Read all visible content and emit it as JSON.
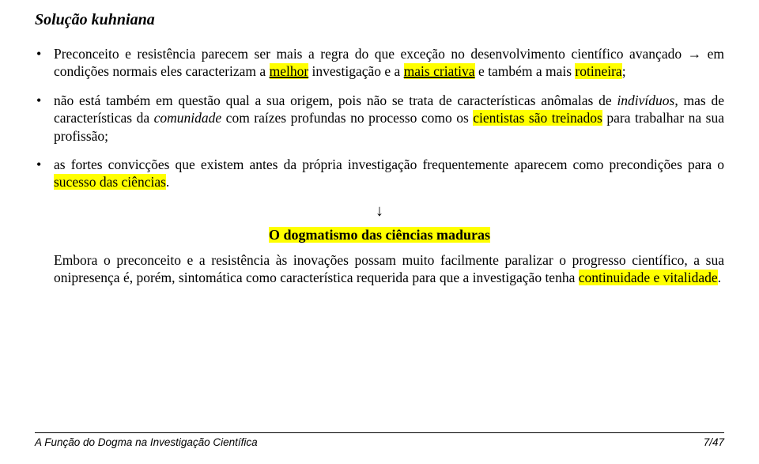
{
  "title": "Solução kuhniana",
  "bullet1": {
    "a": "Preconceito e resistência parecem ser mais a regra do que exceção no desenvolvimento científico avançado → em condições normais eles caracterizam a ",
    "melhor": "melhor",
    "b": " investigação e a ",
    "mais_criativa": "mais criativa",
    "c": " e também a mais ",
    "rotineira": "rotineira",
    "d": ";"
  },
  "bullet2": {
    "a": "não está também em questão qual a sua origem, pois não se trata de características anômalas de ",
    "individuos": "indivíduos",
    "b": ", mas de características da ",
    "comunidade": "comunidade",
    "c": " com raízes profundas no processo como os ",
    "cientistas": "cientistas são treinados",
    "d": " para trabalhar na sua profissão;"
  },
  "bullet3": {
    "a": "as fortes convicções que existem antes da própria investigação frequentemente aparecem como precondições para o ",
    "sucesso": "sucesso das ciências",
    "b": "."
  },
  "subheading": "O dogmatismo das ciências maduras",
  "paragraph": {
    "a": "Embora o preconceito e a resistência às inovações possam muito facilmente paralizar o progresso científico, a sua onipresença é, porém, sintomática como característica requerida para que a investigação tenha ",
    "cont": "continuidade e vitalidade",
    "b": "."
  },
  "footer_left": "A Função do Dogma na Investigação Científica",
  "footer_right": "7/47",
  "arrow_down": "↓"
}
